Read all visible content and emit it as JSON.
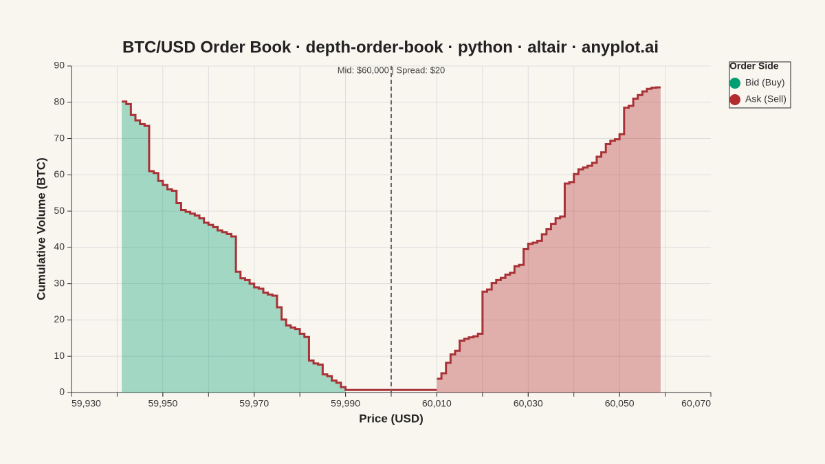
{
  "chart_data": {
    "type": "depth",
    "title": "BTC/USD Order Book · depth-order-book · python · altair · anyplot.ai",
    "x_label": "Price (USD)",
    "y_label": "Cumulative Volume (BTC)",
    "annotation": "Mid: $60,000 | Spread: $20",
    "mid_price": 60000,
    "legend_title": "Order Side",
    "legend_position": "top-right",
    "line_color": "#a83236",
    "xlim": [
      59930,
      60070
    ],
    "xticks": [
      {
        "value": 59930,
        "label": "59,930"
      },
      {
        "value": 59950,
        "label": "59,950"
      },
      {
        "value": 59970,
        "label": "59,970"
      },
      {
        "value": 59990,
        "label": "59,990"
      },
      {
        "value": 60010,
        "label": "60,010"
      },
      {
        "value": 60030,
        "label": "60,030"
      },
      {
        "value": 60050,
        "label": "60,050"
      },
      {
        "value": 60070,
        "label": "60,070"
      }
    ],
    "xgrid_ticks": [
      59940,
      59950,
      59960,
      59970,
      59980,
      59990,
      60000,
      60010,
      60020,
      60030,
      60040,
      60050,
      60060
    ],
    "ylim": [
      0,
      90
    ],
    "yticks": [
      0,
      10,
      20,
      30,
      40,
      50,
      60,
      70,
      80,
      90
    ],
    "grid": true,
    "series": [
      {
        "name": "Bid (Buy)",
        "color": "#009e73",
        "x": [
          59941,
          59942,
          59943,
          59944,
          59945,
          59946,
          59947,
          59948,
          59949,
          59950,
          59951,
          59952,
          59953,
          59954,
          59955,
          59956,
          59957,
          59958,
          59959,
          59960,
          59961,
          59962,
          59963,
          59964,
          59965,
          59966,
          59967,
          59968,
          59969,
          59970,
          59971,
          59972,
          59973,
          59974,
          59975,
          59976,
          59977,
          59978,
          59979,
          59980,
          59981,
          59982,
          59983,
          59984,
          59985,
          59986,
          59987,
          59988,
          59989,
          59990
        ],
        "values": [
          80.2,
          79.5,
          76.5,
          75,
          74,
          73.5,
          61,
          60.5,
          58.3,
          57.2,
          56,
          55.6,
          52.2,
          50.3,
          49.8,
          49.3,
          48.8,
          48,
          46.8,
          46.2,
          45.6,
          44.7,
          44.2,
          43.7,
          43,
          33.3,
          31.5,
          31,
          30,
          29,
          28.6,
          27.5,
          27,
          26.7,
          23.5,
          20.1,
          18.5,
          17.9,
          17.5,
          16.2,
          15.3,
          8.8,
          8,
          7.7,
          5,
          4.5,
          3.3,
          2.7,
          1.5,
          0.7
        ]
      },
      {
        "name": "Ask (Sell)",
        "color": "#b22b2f",
        "x": [
          60010,
          60011,
          60012,
          60013,
          60014,
          60015,
          60016,
          60017,
          60018,
          60019,
          60020,
          60021,
          60022,
          60023,
          60024,
          60025,
          60026,
          60027,
          60028,
          60029,
          60030,
          60031,
          60032,
          60033,
          60034,
          60035,
          60036,
          60037,
          60038,
          60039,
          60040,
          60041,
          60042,
          60043,
          60044,
          60045,
          60046,
          60047,
          60048,
          60049,
          60050,
          60051,
          60052,
          60053,
          60054,
          60055,
          60056,
          60057,
          60058
        ],
        "values": [
          3.8,
          5.3,
          8.2,
          10.5,
          11.5,
          14.3,
          14.8,
          15.2,
          15.5,
          16.2,
          27.8,
          28.4,
          30.2,
          31,
          31.6,
          32.5,
          33,
          34.8,
          35.2,
          39.5,
          41,
          41.3,
          41.8,
          43.6,
          45,
          46.5,
          48,
          48.5,
          57.6,
          58,
          60.2,
          61.5,
          62,
          62.5,
          63.3,
          65,
          66.2,
          68.5,
          69.4,
          69.8,
          71.2,
          78.5,
          79,
          81,
          82,
          83,
          83.7,
          84,
          84.1
        ]
      }
    ]
  }
}
